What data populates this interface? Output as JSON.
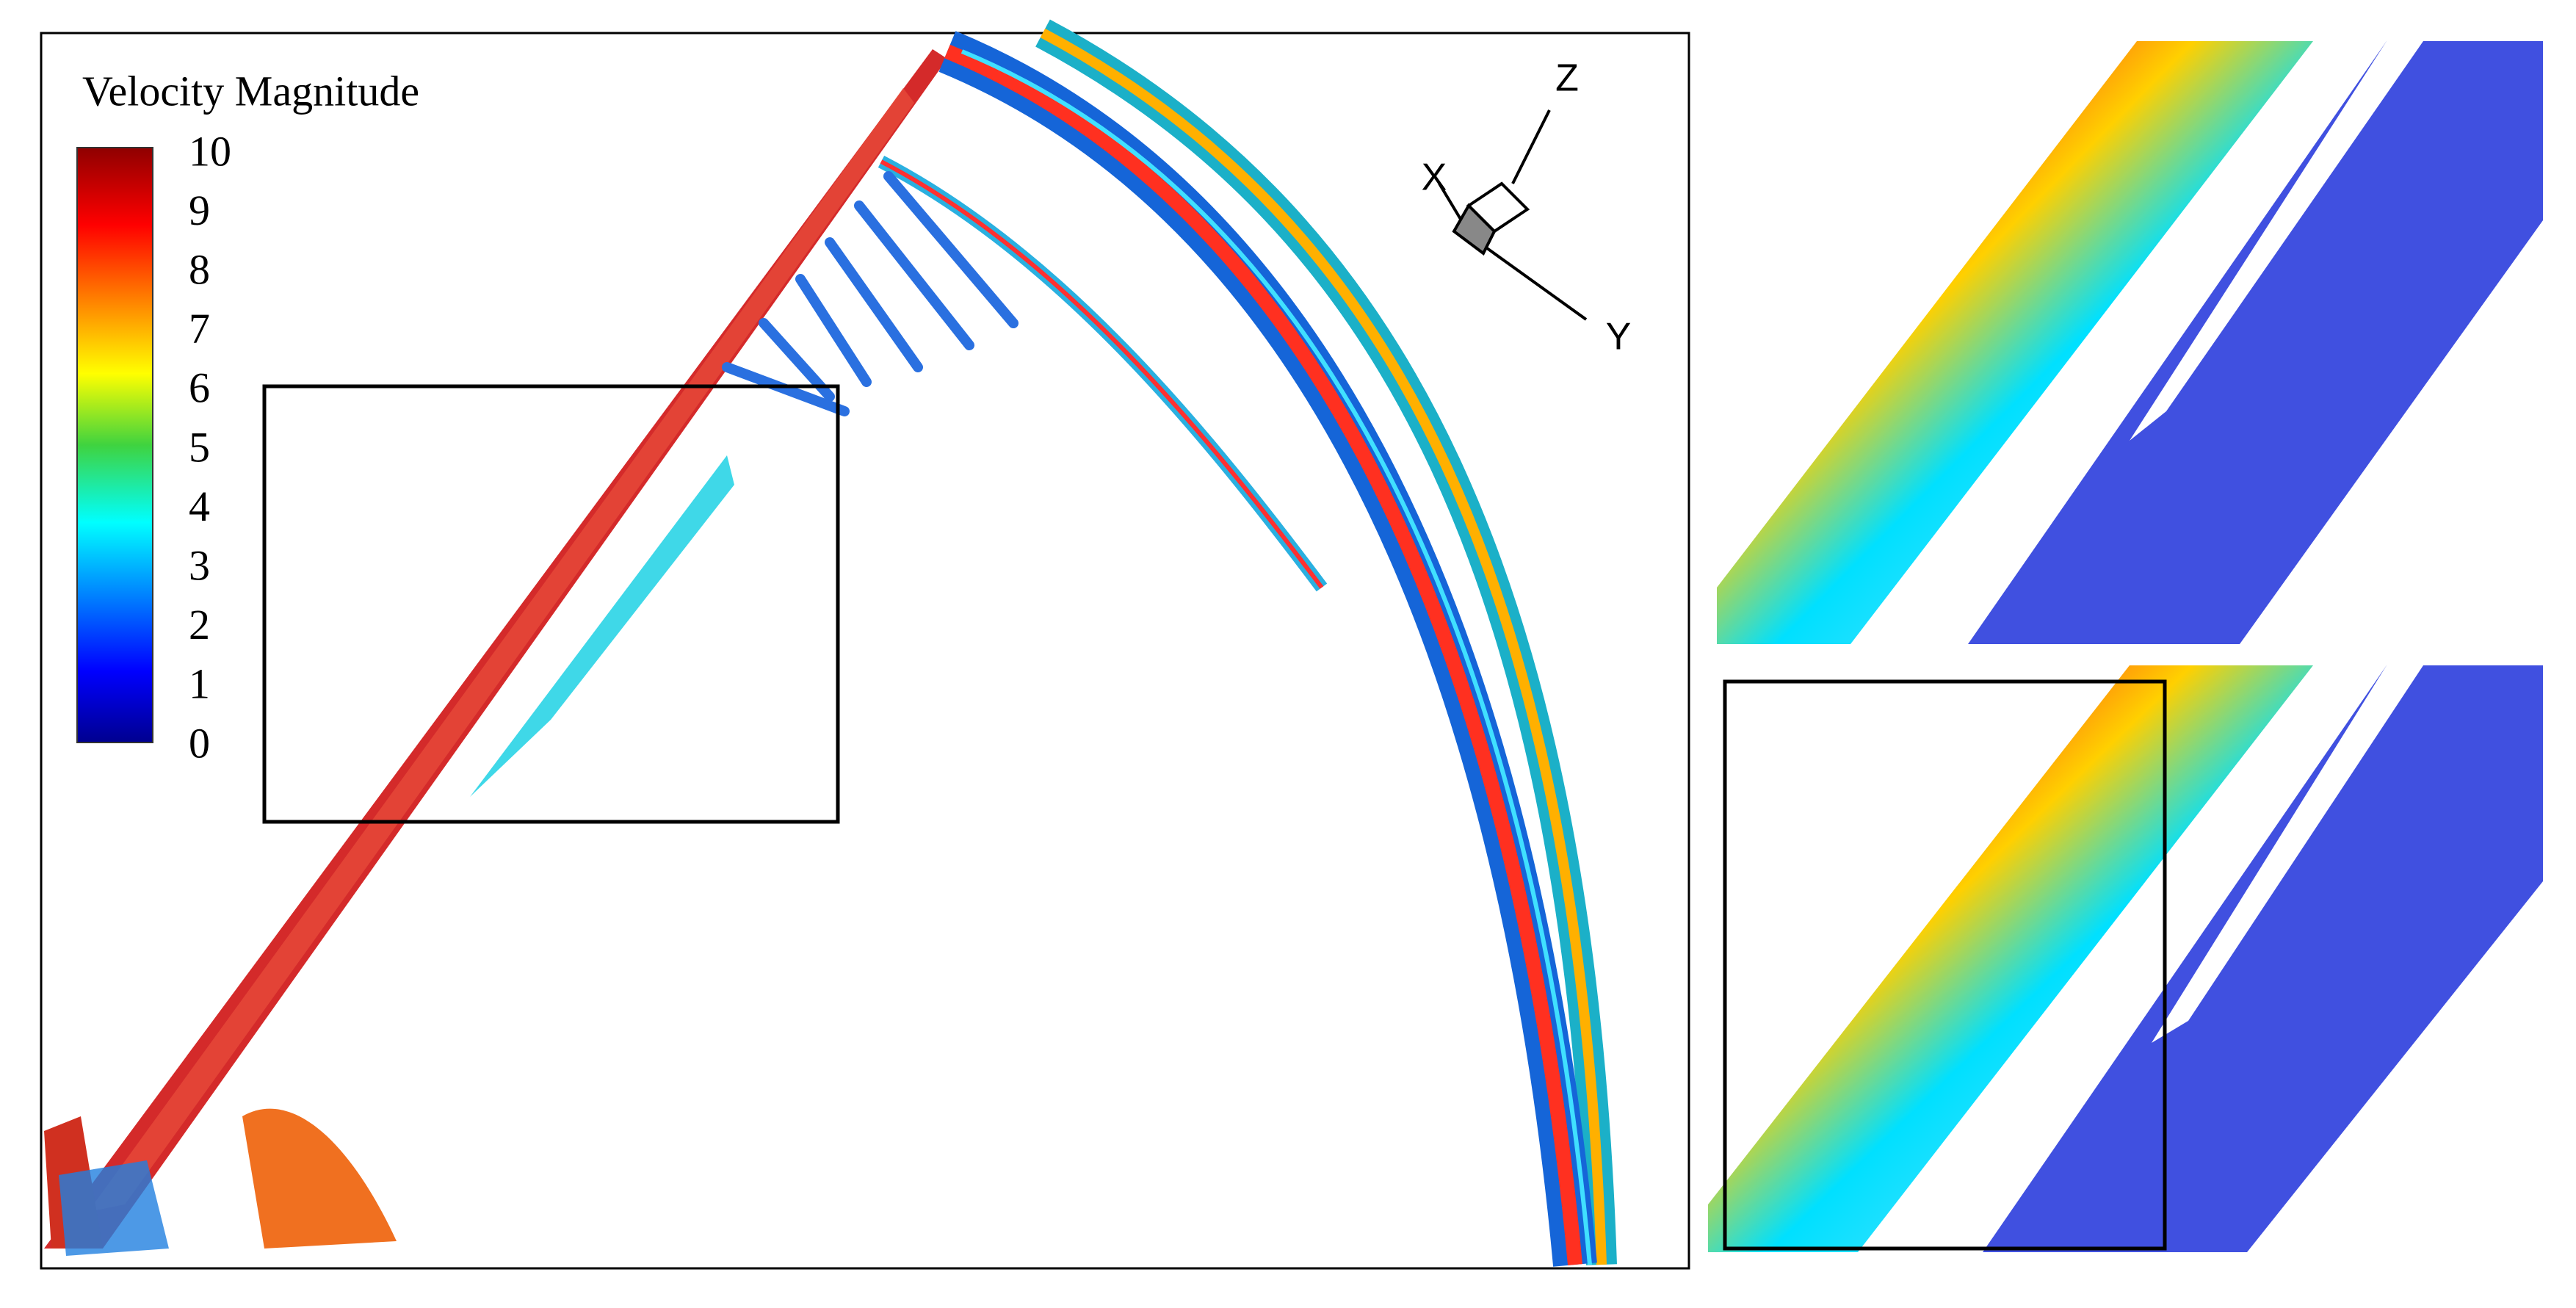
{
  "colorbar": {
    "title": "Velocity Magnitude",
    "ticks": [
      0,
      1,
      2,
      3,
      4,
      5,
      6,
      7,
      8,
      9,
      10
    ]
  },
  "axes_triad": {
    "x": "X",
    "y": "Y",
    "z": "Z"
  }
}
